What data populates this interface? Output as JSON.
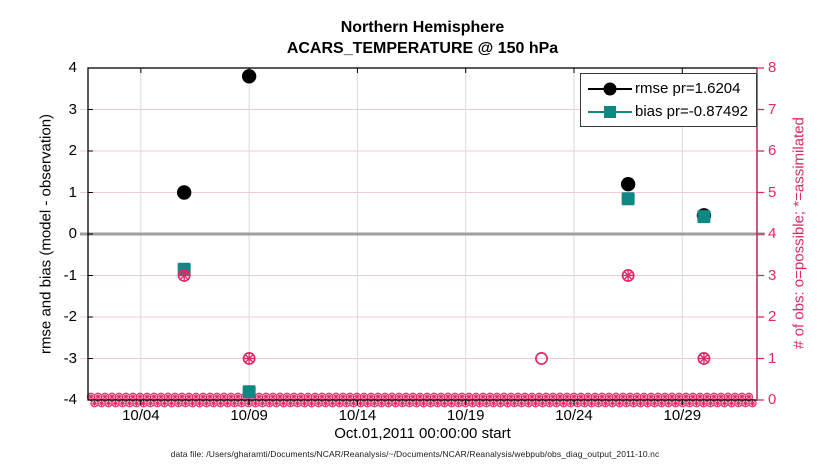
{
  "header": {
    "title_line1": "Northern Hemisphere",
    "title_line2": "ACARS_TEMPERATURE @ 150 hPa"
  },
  "footer": {
    "data_file_note": "data file: /Users/gharamti/Documents/NCAR/Reanalysis/~/Documents/NCAR/Reanalysis/webpub/obs_diag_output_2011-10.nc"
  },
  "chart_data": {
    "type": "scatter",
    "title": "Northern Hemisphere",
    "subtitle": "ACARS_TEMPERATURE @ 150 hPa",
    "xlabel": "Oct.01,2011 00:00:00 start",
    "ylabel_left": "rmse and bias (model - observation)",
    "ylabel_right": "# of obs: o=possible; *=assimilated",
    "x_axis": {
      "domain_days": [
        1.56,
        32.45
      ],
      "tick_days": [
        4,
        9,
        14,
        19,
        24,
        29
      ],
      "tick_labels": [
        "10/04",
        "10/09",
        "10/14",
        "10/19",
        "10/24",
        "10/29"
      ]
    },
    "y_left": {
      "lim": [
        -4,
        4
      ],
      "ticks": [
        4,
        3,
        2,
        1,
        0,
        -1,
        -2,
        -3,
        -4
      ]
    },
    "y_right": {
      "lim": [
        0,
        8
      ],
      "ticks": [
        8,
        7,
        6,
        5,
        4,
        3,
        2,
        1,
        0
      ]
    },
    "legend": [
      {
        "label": "rmse pr=1.6204",
        "marker": "filled-circle",
        "color": "#000000"
      },
      {
        "label": "bias pr=-0.87492",
        "marker": "filled-square",
        "color": "#0f8782"
      }
    ],
    "series": [
      {
        "name": "rmse",
        "axis": "left",
        "marker": "filled-circle",
        "color": "#000000",
        "points": [
          {
            "date": "10/06",
            "day": 6,
            "value": 1.0
          },
          {
            "date": "10/09",
            "day": 9,
            "value": 3.8
          },
          {
            "date": "10/26",
            "day": 26.5,
            "value": 1.2
          },
          {
            "date": "10/30",
            "day": 30,
            "value": 0.45
          }
        ]
      },
      {
        "name": "bias",
        "axis": "left",
        "marker": "filled-square",
        "color": "#0f8782",
        "points": [
          {
            "date": "10/06",
            "day": 6,
            "value": -0.85
          },
          {
            "date": "10/09",
            "day": 9,
            "value": -3.8
          },
          {
            "date": "10/26",
            "day": 26.5,
            "value": 0.85
          },
          {
            "date": "10/30",
            "day": 30,
            "value": 0.42
          }
        ]
      },
      {
        "name": "possible_obs",
        "axis": "right",
        "marker": "open-circle",
        "color": "#e22865",
        "points": [
          {
            "date": "10/06",
            "day": 6,
            "value": 3
          },
          {
            "date": "10/09",
            "day": 9,
            "value": 1
          },
          {
            "date": "10/22",
            "day": 22.5,
            "value": 1
          },
          {
            "date": "10/26",
            "day": 26.5,
            "value": 3
          },
          {
            "date": "10/30",
            "day": 30,
            "value": 1
          }
        ]
      },
      {
        "name": "assimilated_obs",
        "axis": "right",
        "marker": "star",
        "color": "#e22865",
        "points": [
          {
            "date": "10/06",
            "day": 6,
            "value": 3
          },
          {
            "date": "10/09",
            "day": 9,
            "value": 1
          },
          {
            "date": "10/26",
            "day": 26.5,
            "value": 3
          },
          {
            "date": "10/30",
            "day": 30,
            "value": 1
          }
        ]
      }
    ],
    "zero_obs_band": {
      "axis": "right",
      "value": 0,
      "start_day": 1.56,
      "end_day": 32.45,
      "marker": "circle-star",
      "color": "#e22865",
      "note": "dense row of o/* markers at zero obs count along the bottom axis"
    },
    "style": {
      "grid_h_color": "#f2c9d8",
      "grid_v_color": "#dadada",
      "zero_line_color": "#9e9e9e",
      "axis_color": "#000000",
      "right_axis_color": "#e22865"
    }
  }
}
